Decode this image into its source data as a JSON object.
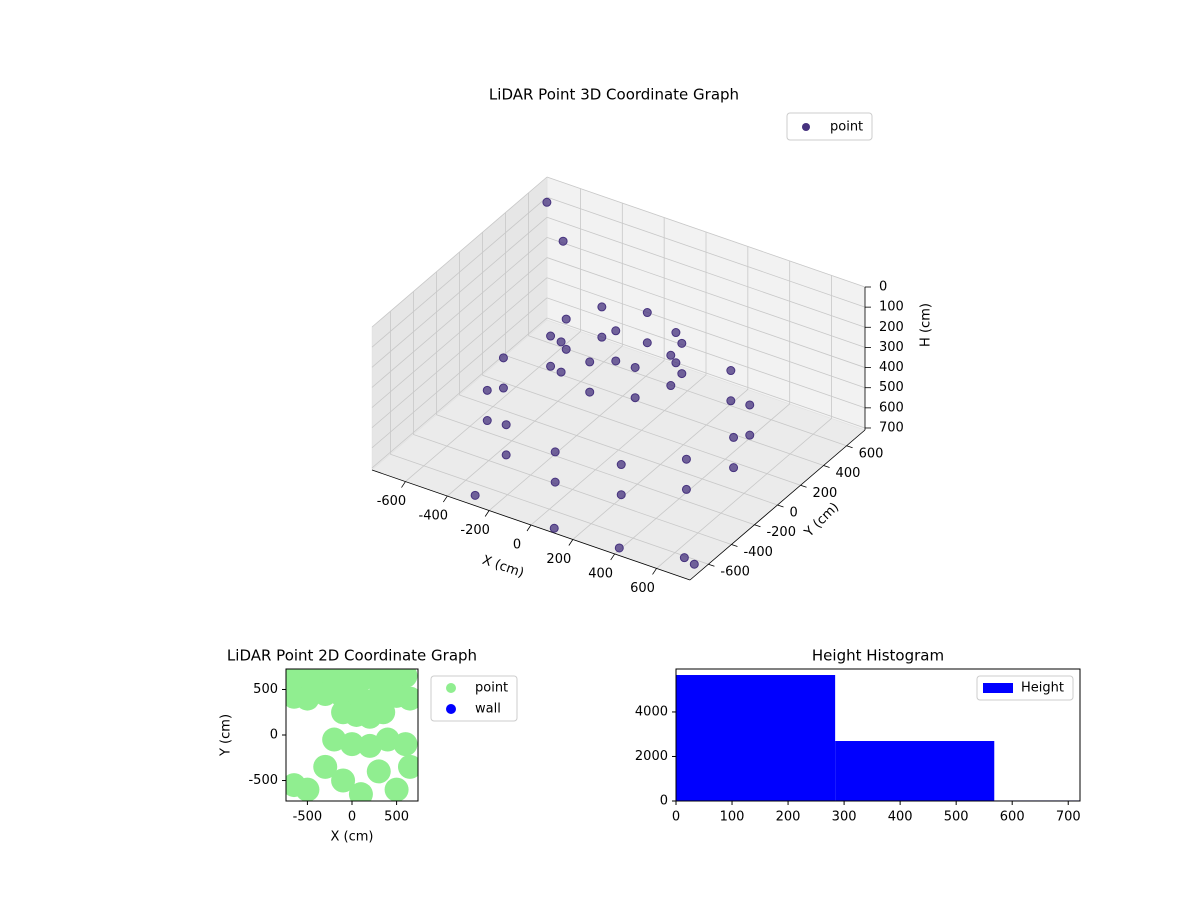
{
  "chart_data": [
    {
      "type": "scatter3d",
      "title": "LiDAR Point 3D Coordinate Graph",
      "xlabel": "X (cm)",
      "ylabel": "Y (cm)",
      "zlabel": "H (cm)",
      "xlim": [
        -760,
        760
      ],
      "ylim": [
        -760,
        760
      ],
      "zlim": [
        710,
        0
      ],
      "xticks": [
        -600,
        -400,
        -200,
        0,
        200,
        400,
        600
      ],
      "yticks": [
        -600,
        -400,
        -200,
        0,
        200,
        400,
        600
      ],
      "zticks": [
        0,
        100,
        200,
        300,
        400,
        500,
        600,
        700
      ],
      "grid": true,
      "legend": "upper right",
      "series": [
        {
          "name": "point",
          "color": "#46327e",
          "x": [
            550,
            476,
            275,
            0,
            -275,
            -476,
            -550,
            -476,
            -275,
            0,
            275,
            476,
            550,
            476,
            275,
            0,
            -275,
            -476,
            -550,
            -476,
            -275,
            0,
            275,
            476,
            250,
            177,
            0,
            -177,
            -250,
            -177,
            0,
            177,
            250,
            177,
            0,
            -177,
            -250,
            -177,
            0,
            177,
            -700,
            -650,
            700,
            720,
            400,
            -300,
            100
          ],
          "y": [
            0,
            275,
            476,
            550,
            476,
            275,
            0,
            -275,
            -476,
            -550,
            -476,
            -275,
            0,
            275,
            476,
            550,
            476,
            275,
            0,
            -275,
            -476,
            -550,
            -476,
            -275,
            0,
            177,
            250,
            177,
            0,
            -177,
            -250,
            -177,
            0,
            177,
            250,
            177,
            0,
            -177,
            -250,
            -177,
            650,
            700,
            -700,
            -650,
            -720,
            -700,
            -740
          ],
          "h": [
            600,
            600,
            600,
            600,
            600,
            600,
            600,
            600,
            600,
            600,
            600,
            600,
            450,
            450,
            450,
            450,
            450,
            450,
            450,
            450,
            450,
            450,
            450,
            450,
            150,
            150,
            150,
            150,
            150,
            150,
            150,
            150,
            300,
            300,
            300,
            300,
            300,
            300,
            300,
            300,
            50,
            250,
            650,
            700,
            700,
            700,
            700
          ]
        }
      ]
    },
    {
      "type": "scatter",
      "title": "LiDAR Point 2D Coordinate Graph",
      "xlabel": "X (cm)",
      "ylabel": "Y (cm)",
      "xlim": [
        -740,
        740
      ],
      "ylim": [
        -725,
        725
      ],
      "xticks": [
        -500,
        0,
        500
      ],
      "yticks": [
        -500,
        0,
        500
      ],
      "legend": "outside right",
      "series": [
        {
          "name": "point",
          "color": "#90ee90",
          "x": [
            -650,
            -550,
            -450,
            -350,
            -250,
            -150,
            0,
            150,
            300,
            450,
            600,
            -650,
            -500,
            -300,
            -100,
            100,
            300,
            500,
            650,
            -100,
            50,
            200,
            350,
            -200,
            0,
            200,
            400,
            -650,
            -500,
            -300,
            -100,
            100,
            300,
            500,
            650,
            600
          ],
          "y": [
            620,
            630,
            600,
            620,
            600,
            640,
            620,
            630,
            600,
            620,
            650,
            420,
            400,
            450,
            420,
            400,
            420,
            430,
            400,
            250,
            220,
            200,
            250,
            -50,
            -100,
            -120,
            -50,
            -550,
            -600,
            -350,
            -500,
            -650,
            -400,
            -600,
            -350,
            -100
          ]
        },
        {
          "name": "wall",
          "color": "#0000ff",
          "x": [],
          "y": []
        }
      ]
    },
    {
      "type": "histogram",
      "title": "Height Histogram",
      "xlim": [
        0,
        721
      ],
      "ylim": [
        0,
        5930
      ],
      "xticks": [
        0,
        100,
        200,
        300,
        400,
        500,
        600,
        700
      ],
      "yticks": [
        0,
        2000,
        4000
      ],
      "legend": "upper right",
      "series": [
        {
          "name": "Height",
          "color": "#0000ff",
          "bins": [
            0,
            284,
            568,
            852
          ],
          "counts": [
            5660,
            2695,
            25
          ]
        }
      ]
    }
  ]
}
